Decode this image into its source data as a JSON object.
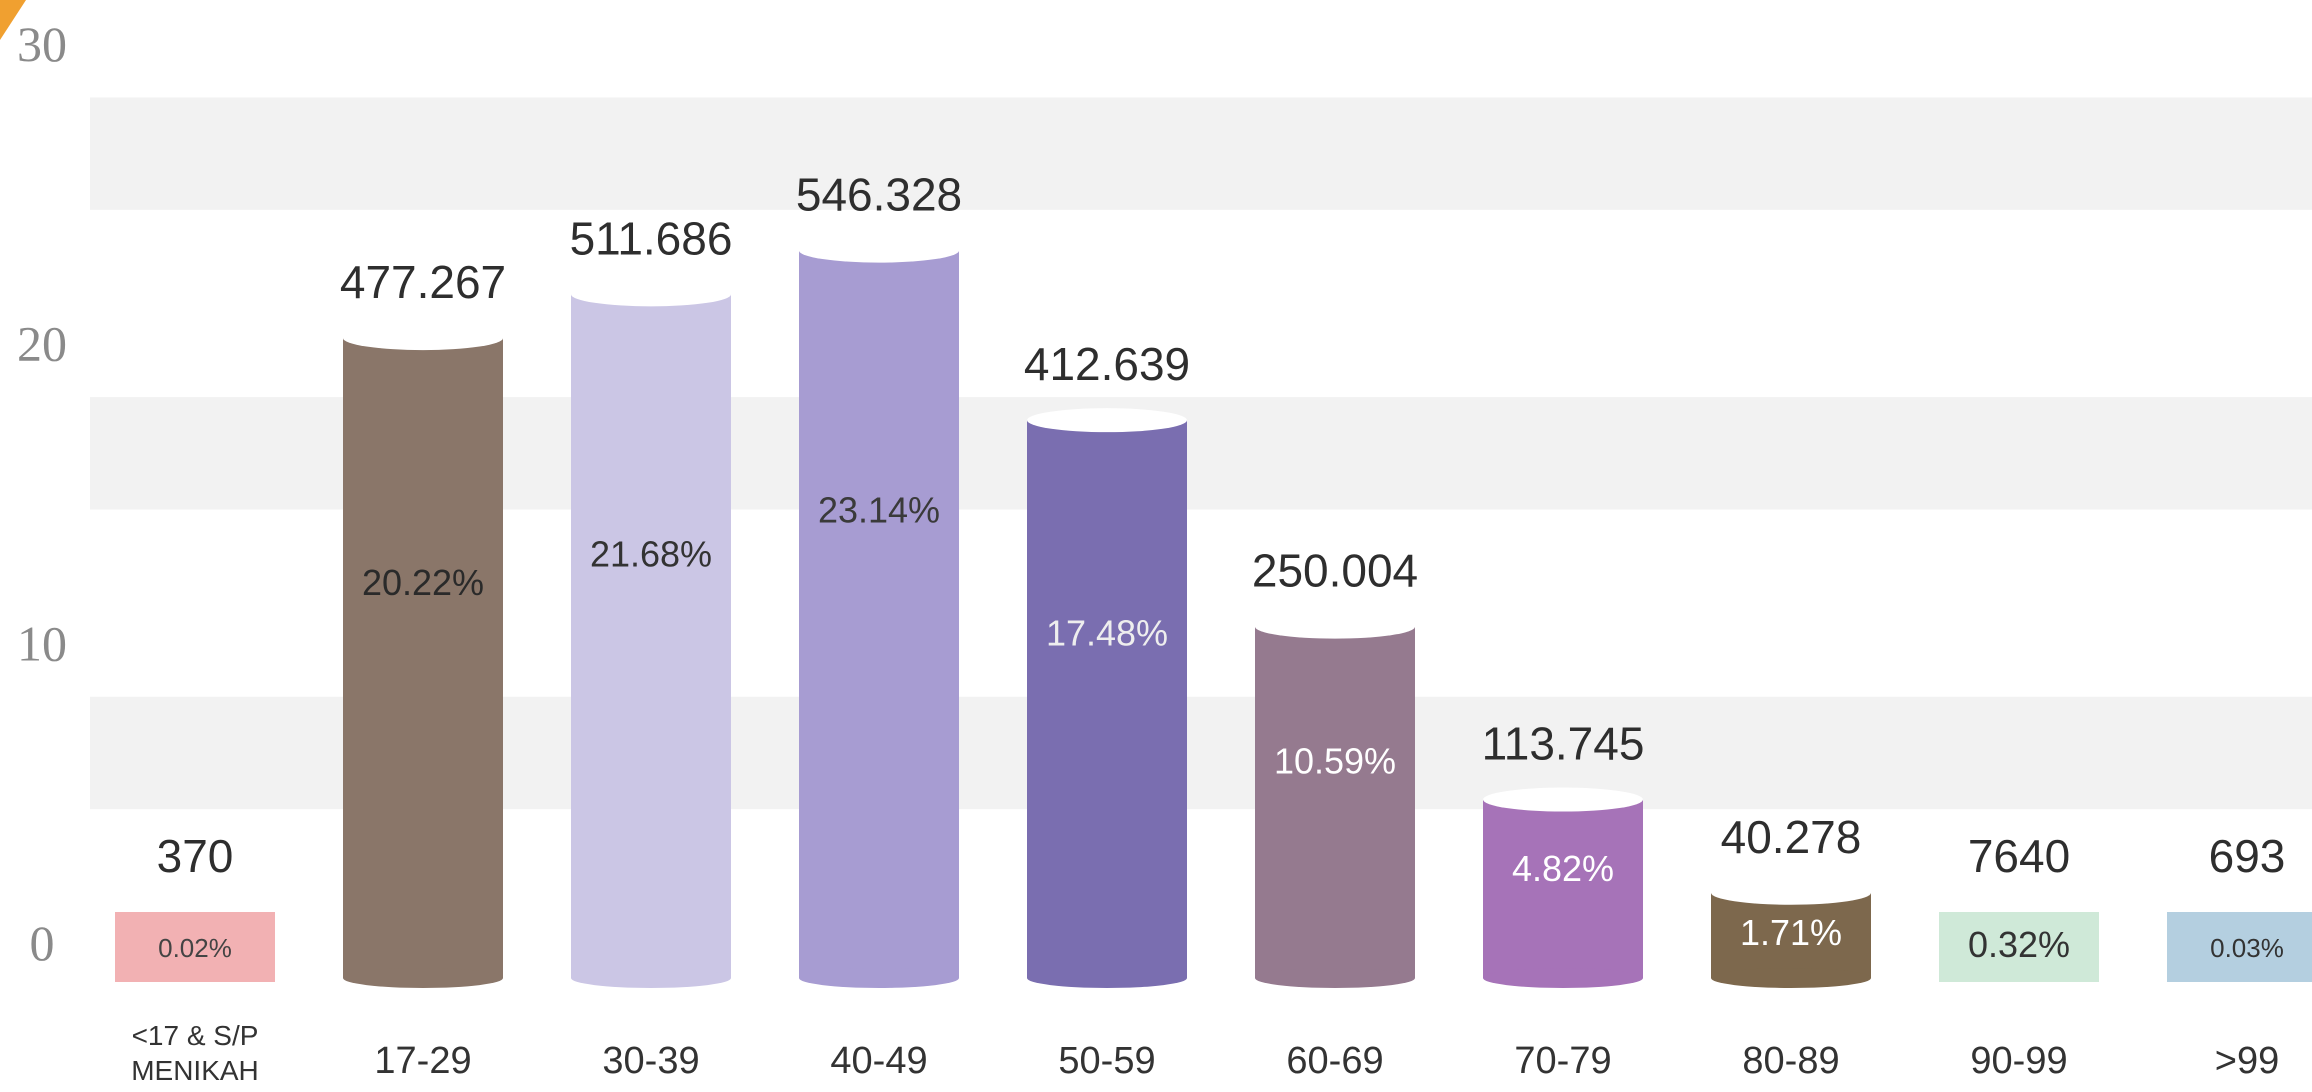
{
  "chart_data": {
    "type": "bar",
    "title": "",
    "xlabel": "",
    "ylabel": "",
    "ylim": [
      0,
      30
    ],
    "yticks": [
      0,
      10,
      20,
      30
    ],
    "grid": "horizontal bands",
    "categories": [
      "<17 & S/P MENIKAH",
      "17-29",
      "30-39",
      "40-49",
      "50-59",
      "60-69",
      "70-79",
      "80-89",
      "90-99",
      ">99"
    ],
    "bar_heights": [
      0.02,
      20.22,
      21.68,
      23.14,
      17.48,
      10.59,
      4.82,
      1.71,
      0.32,
      0.03
    ],
    "value_labels": [
      "370",
      "477.267",
      "511.686",
      "546.328",
      "412.639",
      "250.004",
      "113.745",
      "40.278",
      "7640",
      "693"
    ],
    "percent_labels": [
      "0.02%",
      "20.22%",
      "21.68%",
      "23.14%",
      "17.48%",
      "10.59%",
      "4.82%",
      "1.71%",
      "0.32%",
      "0.03%"
    ],
    "colors": [
      "#f2b1b3",
      "#8a7669",
      "#cbc6e5",
      "#a79cd2",
      "#7a6eb0",
      "#957a8f",
      "#a673b8",
      "#7d684d",
      "#cfe9d8",
      "#b4cfe0"
    ],
    "label_colors": [
      "#444444",
      "#2a2a2a",
      "#333333",
      "#3a3a3a",
      "#eeeeee",
      "#ffffff",
      "#ffffff",
      "#ffffff",
      "#333333",
      "#333333"
    ]
  }
}
